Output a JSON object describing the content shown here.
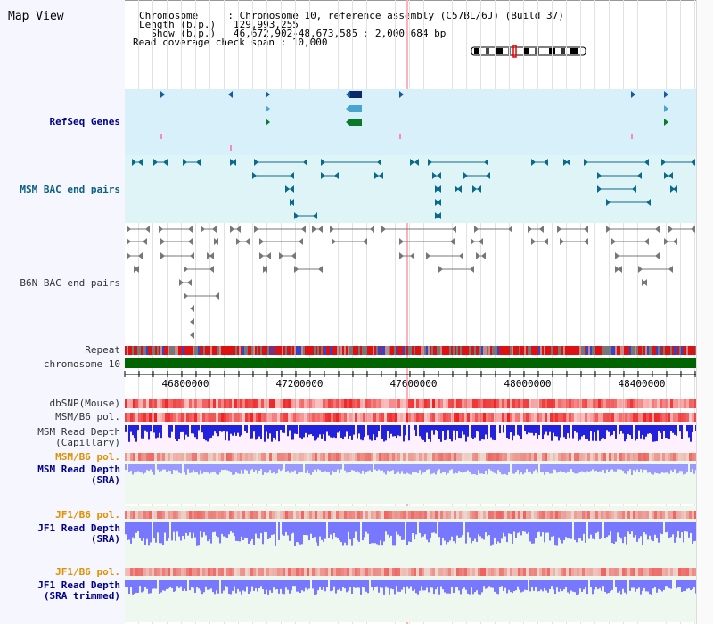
{
  "title": "Map View",
  "header": {
    "chromosome_key": "Chromosome     : ",
    "chromosome_value": "Chromosome 10, reference assembly (C57BL/6J) (Build 37)",
    "length_key": "Length (b.p.) : ",
    "length_value": "129,993,255",
    "show_key": "  Show (b.p.) : ",
    "show_value": "46,672,902-48,673,585 : 2,000,684 bp",
    "coverage_key": "Read coverage check span : ",
    "coverage_value": "10,000"
  },
  "tracks": {
    "refseq": "RefSeq Genes",
    "msm_bac": "MSM BAC end pairs",
    "b6n_bac": "B6N BAC end pairs",
    "repeat": "Repeat",
    "chromosome": "chromosome 10",
    "dbsnp": "dbSNP(Mouse)",
    "msm_b6_pol": "MSM/B6 pol.",
    "msm_depth_cap_1": "MSM Read Depth",
    "msm_depth_cap_2": "(Capillary)",
    "msm_b6_pol2": "MSM/B6 pol.",
    "msm_depth_sra_1": "MSM Read Depth",
    "msm_depth_sra_2": "(SRA)",
    "jf1_b6_pol": "JF1/B6 pol.",
    "jf1_depth_sra_1": "JF1 Read Depth",
    "jf1_depth_sra_2": "(SRA)",
    "jf1_b6_pol2": "JF1/B6 pol.",
    "jf1_depth_trim_1": "JF1 Read Depth",
    "jf1_depth_trim_2": "(SRA trimmed)"
  },
  "axis_ticks": [
    "46800000",
    "47200000",
    "47600000",
    "48000000",
    "48400000"
  ],
  "colors": {
    "refseq_bg": "#d7f0fa",
    "msm_bac_bg": "#dff4f7",
    "b6n_bac_bg": "#ffffff",
    "chromosome_bar": "#006400",
    "depth_cap": "#2222dd",
    "depth_sra": "#7777ff",
    "depth_sra_light": "#9999ff",
    "sra_bg": "#eef8ee",
    "pink_bg": "#fff0ff",
    "cursor_line": "#ffb0c0"
  }
}
